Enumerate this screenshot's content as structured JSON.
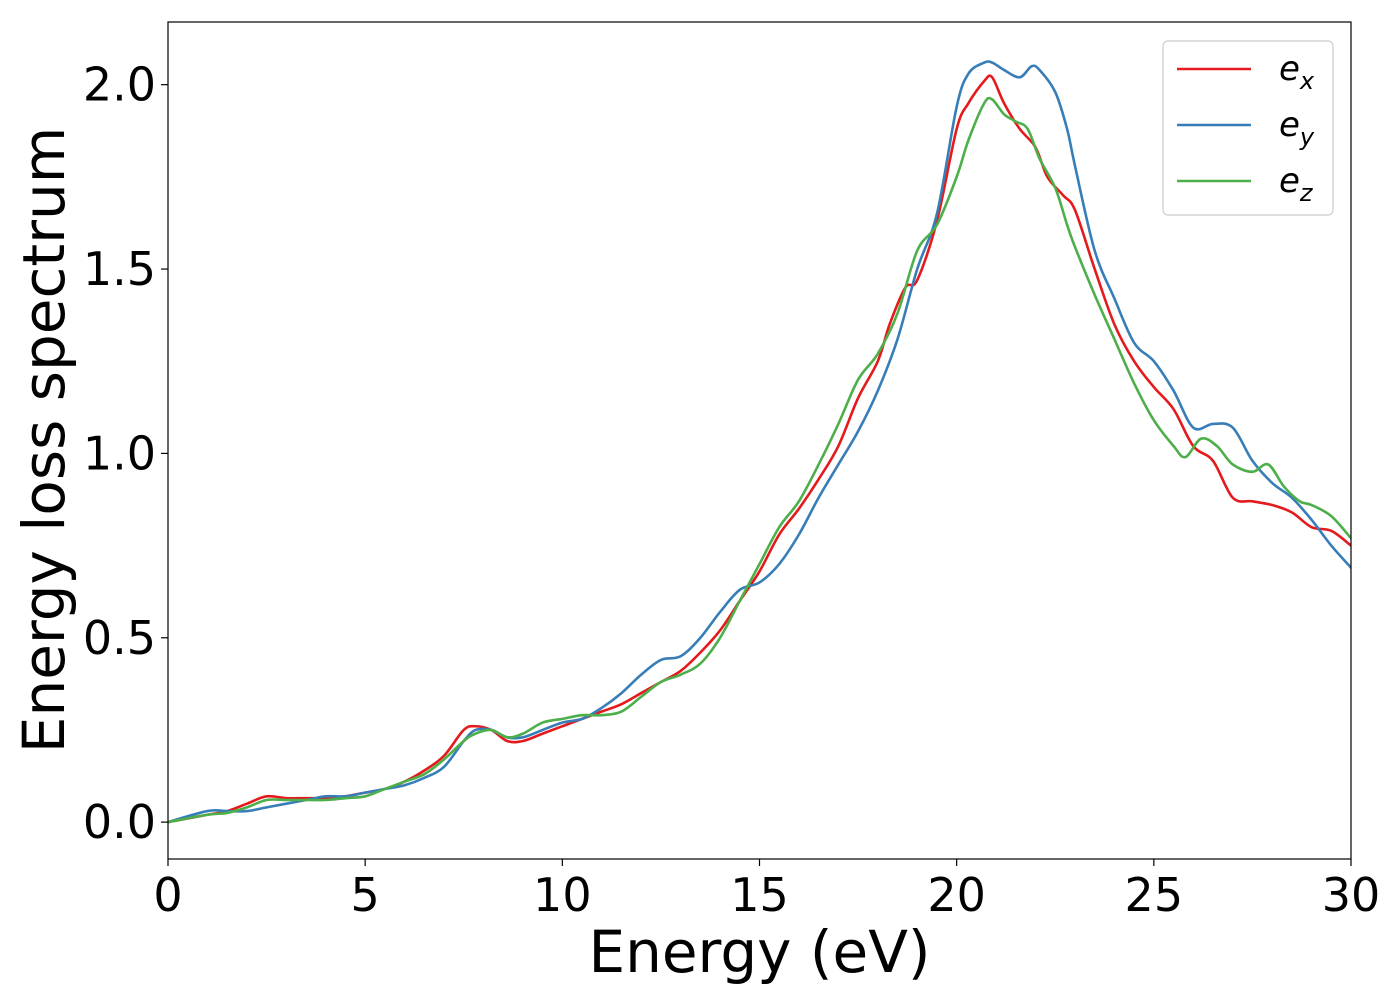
{
  "chart_data": {
    "type": "line",
    "title": "",
    "xlabel": "Energy (eV)",
    "ylabel": "Energy loss spectrum",
    "xlim": [
      0,
      30
    ],
    "ylim": [
      -0.1,
      2.17
    ],
    "xticks": [
      0,
      5,
      10,
      15,
      20,
      25,
      30
    ],
    "xtick_labels": [
      "0",
      "5",
      "10",
      "15",
      "20",
      "25",
      "30"
    ],
    "yticks": [
      0.0,
      0.5,
      1.0,
      1.5,
      2.0
    ],
    "ytick_labels": [
      "0.0",
      "0.5",
      "1.0",
      "1.5",
      "2.0"
    ],
    "grid": false,
    "legend_position": "top-right",
    "series": [
      {
        "name": "e",
        "subscript": "x",
        "color": "#e41a1c",
        "x": [
          0,
          1,
          1.5,
          2,
          2.5,
          3,
          3.5,
          4,
          4.5,
          5,
          5.5,
          6,
          6.5,
          7,
          7.5,
          7.8,
          8.2,
          8.6,
          9,
          9.5,
          10,
          10.5,
          11,
          11.5,
          12,
          12.5,
          13,
          13.5,
          14,
          14.5,
          15,
          15.5,
          16,
          16.5,
          17,
          17.5,
          18,
          18.3,
          18.7,
          19,
          19.5,
          20,
          20.3,
          20.7,
          20.9,
          21.2,
          21.6,
          22,
          22.3,
          22.7,
          23,
          23.5,
          24,
          24.5,
          25,
          25.5,
          26,
          26.5,
          27,
          27.5,
          28,
          28.5,
          29,
          29.5,
          30
        ],
        "y": [
          0.0,
          0.02,
          0.03,
          0.05,
          0.07,
          0.065,
          0.065,
          0.065,
          0.07,
          0.08,
          0.09,
          0.11,
          0.14,
          0.18,
          0.25,
          0.26,
          0.25,
          0.22,
          0.22,
          0.24,
          0.26,
          0.28,
          0.3,
          0.32,
          0.35,
          0.38,
          0.41,
          0.46,
          0.52,
          0.6,
          0.68,
          0.78,
          0.85,
          0.93,
          1.02,
          1.15,
          1.25,
          1.35,
          1.45,
          1.47,
          1.63,
          1.88,
          1.95,
          2.01,
          2.02,
          1.95,
          1.88,
          1.83,
          1.75,
          1.7,
          1.66,
          1.5,
          1.35,
          1.25,
          1.18,
          1.12,
          1.02,
          0.98,
          0.88,
          0.87,
          0.86,
          0.84,
          0.8,
          0.79,
          0.75
        ]
      },
      {
        "name": "e",
        "subscript": "y",
        "color": "#377eb8",
        "x": [
          0,
          1,
          1.5,
          2,
          2.5,
          3,
          3.5,
          4,
          4.5,
          5,
          5.5,
          6,
          6.5,
          7,
          7.5,
          7.8,
          8.2,
          8.6,
          9,
          9.5,
          10,
          10.5,
          11,
          11.5,
          12,
          12.5,
          13,
          13.5,
          14,
          14.5,
          15,
          15.5,
          16,
          16.5,
          17,
          17.5,
          18,
          18.5,
          19,
          19.5,
          20,
          20.3,
          20.7,
          20.9,
          21.2,
          21.6,
          21.9,
          22.1,
          22.5,
          22.8,
          23,
          23.5,
          24,
          24.5,
          25,
          25.5,
          26,
          26.5,
          27,
          27.5,
          28,
          28.5,
          29,
          29.5,
          30
        ],
        "y": [
          0.0,
          0.03,
          0.03,
          0.03,
          0.04,
          0.05,
          0.06,
          0.07,
          0.07,
          0.08,
          0.09,
          0.1,
          0.12,
          0.15,
          0.22,
          0.25,
          0.25,
          0.23,
          0.23,
          0.25,
          0.27,
          0.28,
          0.31,
          0.35,
          0.4,
          0.44,
          0.45,
          0.5,
          0.57,
          0.63,
          0.65,
          0.7,
          0.78,
          0.88,
          0.97,
          1.06,
          1.17,
          1.31,
          1.5,
          1.65,
          1.94,
          2.03,
          2.06,
          2.06,
          2.04,
          2.02,
          2.05,
          2.04,
          1.98,
          1.88,
          1.78,
          1.55,
          1.42,
          1.3,
          1.25,
          1.17,
          1.07,
          1.08,
          1.07,
          0.98,
          0.92,
          0.88,
          0.82,
          0.75,
          0.69
        ]
      },
      {
        "name": "e",
        "subscript": "z",
        "color": "#4daf4a",
        "x": [
          0,
          1,
          1.5,
          2,
          2.5,
          3,
          3.5,
          4,
          4.5,
          5,
          5.5,
          6,
          6.5,
          7,
          7.5,
          7.8,
          8.2,
          8.6,
          9,
          9.5,
          10,
          10.5,
          11,
          11.5,
          12,
          12.5,
          13,
          13.5,
          14,
          14.5,
          15,
          15.5,
          16,
          16.5,
          17,
          17.5,
          18,
          18.5,
          19,
          19.5,
          20,
          20.3,
          20.7,
          20.9,
          21.2,
          21.5,
          21.8,
          22.1,
          22.5,
          22.8,
          23,
          23.5,
          24,
          24.5,
          25,
          25.5,
          25.8,
          26.2,
          26.6,
          27,
          27.5,
          27.9,
          28.3,
          28.7,
          29,
          29.5,
          30
        ],
        "y": [
          0.0,
          0.02,
          0.025,
          0.04,
          0.06,
          0.06,
          0.06,
          0.06,
          0.065,
          0.07,
          0.09,
          0.11,
          0.13,
          0.17,
          0.22,
          0.24,
          0.25,
          0.23,
          0.24,
          0.27,
          0.28,
          0.29,
          0.29,
          0.3,
          0.34,
          0.38,
          0.4,
          0.43,
          0.5,
          0.6,
          0.7,
          0.8,
          0.87,
          0.97,
          1.08,
          1.2,
          1.27,
          1.38,
          1.55,
          1.62,
          1.75,
          1.85,
          1.95,
          1.96,
          1.92,
          1.9,
          1.88,
          1.8,
          1.72,
          1.62,
          1.56,
          1.43,
          1.31,
          1.19,
          1.09,
          1.02,
          0.99,
          1.04,
          1.02,
          0.97,
          0.95,
          0.97,
          0.91,
          0.87,
          0.86,
          0.83,
          0.77
        ]
      }
    ]
  }
}
